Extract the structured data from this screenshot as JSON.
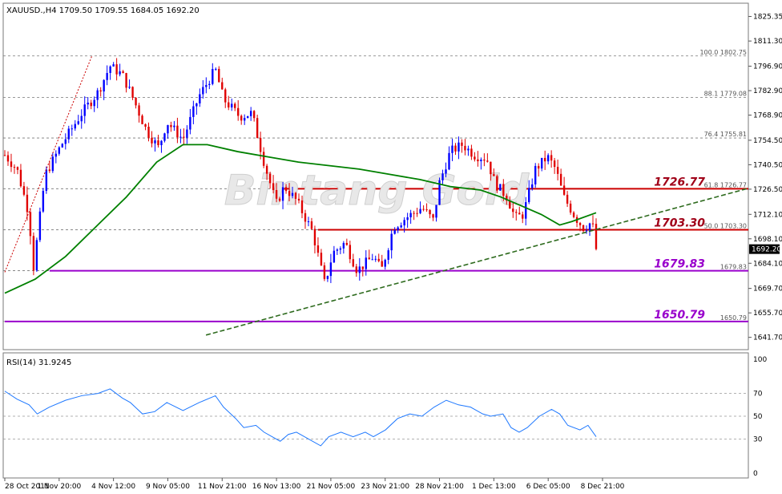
{
  "chart_data": [
    {
      "type": "candlestick",
      "symbol": "XAUUSD.,H4",
      "header": "XAUUSD.,H4  1709.50 1709.55 1684.05 1692.20",
      "quote": {
        "open": 1709.5,
        "high": 1709.55,
        "low": 1684.05,
        "close": 1692.2
      },
      "current_price_label": "1692.20",
      "ylim": [
        1634.66,
        1832.94
      ],
      "y_ticks": [
        "1825.35",
        "1811.30",
        "1796.90",
        "1782.90",
        "1768.90",
        "1754.50",
        "1740.50",
        "1726.50",
        "1712.10",
        "1698.10",
        "1684.10",
        "1669.70",
        "1655.70",
        "1641.70"
      ],
      "x_ticks": [
        "28 Oct 2011",
        "1 Nov 20:00",
        "4 Nov 12:00",
        "9 Nov 05:00",
        "11 Nov 21:00",
        "16 Nov 13:00",
        "21 Nov 05:00",
        "23 Nov 21:00",
        "28 Nov 21:00",
        "1 Dec 13:00",
        "6 Dec 05:00",
        "8 Dec 21:00"
      ],
      "watermark": "Bintang Gold",
      "candle_count": 186,
      "path_points": [
        [
          0,
          1746
        ],
        [
          6,
          1738
        ],
        [
          12,
          1712
        ],
        [
          14,
          1680
        ],
        [
          20,
          1735
        ],
        [
          28,
          1752
        ],
        [
          38,
          1770
        ],
        [
          46,
          1782
        ],
        [
          52,
          1797
        ],
        [
          58,
          1792
        ],
        [
          62,
          1782
        ],
        [
          70,
          1760
        ],
        [
          76,
          1750
        ],
        [
          80,
          1765
        ],
        [
          88,
          1755
        ],
        [
          96,
          1780
        ],
        [
          104,
          1795
        ],
        [
          108,
          1778
        ],
        [
          116,
          1768
        ],
        [
          122,
          1770
        ],
        [
          128,
          1742
        ],
        [
          134,
          1718
        ],
        [
          138,
          1728
        ],
        [
          144,
          1720
        ],
        [
          152,
          1702
        ],
        [
          158,
          1672
        ],
        [
          162,
          1690
        ],
        [
          168,
          1696
        ],
        [
          174,
          1680
        ],
        [
          182,
          1688
        ],
        [
          186,
          1680
        ],
        [
          192,
          1705
        ],
        [
          198,
          1710
        ],
        [
          206,
          1716
        ],
        [
          212,
          1708
        ],
        [
          214,
          1728
        ],
        [
          220,
          1748
        ],
        [
          226,
          1752
        ],
        [
          232,
          1746
        ],
        [
          238,
          1744
        ],
        [
          242,
          1730
        ],
        [
          248,
          1722
        ],
        [
          252,
          1710
        ],
        [
          256,
          1712
        ],
        [
          262,
          1738
        ],
        [
          268,
          1745
        ],
        [
          272,
          1738
        ],
        [
          276,
          1722
        ],
        [
          282,
          1710
        ],
        [
          286,
          1704
        ],
        [
          290,
          1708
        ],
        [
          292,
          1692
        ]
      ],
      "ma_points": [
        [
          0,
          1667
        ],
        [
          15,
          1675
        ],
        [
          30,
          1688
        ],
        [
          45,
          1705
        ],
        [
          60,
          1722
        ],
        [
          75,
          1742
        ],
        [
          88,
          1752
        ],
        [
          100,
          1752
        ],
        [
          115,
          1748
        ],
        [
          130,
          1745
        ],
        [
          145,
          1742
        ],
        [
          160,
          1740
        ],
        [
          175,
          1738
        ],
        [
          190,
          1735
        ],
        [
          205,
          1732
        ],
        [
          220,
          1728
        ],
        [
          235,
          1726
        ],
        [
          245,
          1722
        ],
        [
          255,
          1717
        ],
        [
          265,
          1712
        ],
        [
          274,
          1706
        ],
        [
          280,
          1708
        ],
        [
          292,
          1713
        ]
      ],
      "series": [
        {
          "name": "MA",
          "color": "#008000"
        }
      ],
      "fib_levels": [
        {
          "label": "100.0  1802.75",
          "value": 1802.75
        },
        {
          "label": "88.1  1779.08",
          "value": 1779.08
        },
        {
          "label": "76.4  1755.81",
          "value": 1755.81
        },
        {
          "label": "61.8  1726.77",
          "value": 1726.77
        },
        {
          "label": "50.0  1703.30",
          "value": 1703.3
        },
        {
          "label": "1679.83",
          "value": 1679.83
        },
        {
          "label": "1650.79",
          "value": 1650.79
        }
      ],
      "annotations": [
        {
          "text": "1726.77",
          "value": 1726.77,
          "color": "#a00018"
        },
        {
          "text": "1703.30",
          "value": 1703.3,
          "color": "#a00018"
        },
        {
          "text": "1679.83",
          "value": 1679.83,
          "color": "#9900cc"
        },
        {
          "text": "1650.79",
          "value": 1650.79,
          "color": "#9900cc"
        }
      ],
      "h_lines": [
        {
          "value": 1726.77,
          "color": "#cc0000",
          "from_index": 86
        },
        {
          "value": 1703.3,
          "color": "#cc0000",
          "from_index": 98
        },
        {
          "value": 1679.83,
          "color": "#9900cc",
          "from_index": 14
        },
        {
          "value": 1650.79,
          "color": "#9900cc",
          "from_index": 0
        }
      ],
      "trendline": {
        "from": [
          40,
          1643
        ],
        "to": [
          292,
          1727
        ],
        "color": "#2e6b1e"
      },
      "fib_source_line": {
        "from": [
          0,
          1679
        ],
        "to": [
          43,
          1802.75
        ],
        "color": "#cc0000"
      },
      "colors": {
        "bull": "#0000ff",
        "bear": "#e00000",
        "ma": "#008000",
        "grid": "#c8c8c8"
      }
    },
    {
      "type": "line",
      "title": "RSI(14) 31.9245",
      "ylim": [
        0,
        100
      ],
      "y_ticks": [
        "100",
        "70",
        "50",
        "30",
        "0"
      ],
      "levels": [
        70,
        50,
        30
      ],
      "line_points": [
        [
          0,
          72
        ],
        [
          6,
          65
        ],
        [
          12,
          60
        ],
        [
          16,
          52
        ],
        [
          22,
          58
        ],
        [
          30,
          64
        ],
        [
          38,
          68
        ],
        [
          46,
          70
        ],
        [
          52,
          74
        ],
        [
          58,
          66
        ],
        [
          62,
          62
        ],
        [
          68,
          52
        ],
        [
          74,
          54
        ],
        [
          80,
          62
        ],
        [
          88,
          55
        ],
        [
          96,
          62
        ],
        [
          104,
          68
        ],
        [
          108,
          58
        ],
        [
          114,
          48
        ],
        [
          118,
          40
        ],
        [
          124,
          42
        ],
        [
          128,
          36
        ],
        [
          132,
          32
        ],
        [
          136,
          28
        ],
        [
          140,
          34
        ],
        [
          144,
          36
        ],
        [
          150,
          30
        ],
        [
          156,
          24
        ],
        [
          160,
          32
        ],
        [
          166,
          36
        ],
        [
          172,
          32
        ],
        [
          178,
          36
        ],
        [
          182,
          32
        ],
        [
          188,
          38
        ],
        [
          194,
          48
        ],
        [
          200,
          52
        ],
        [
          206,
          50
        ],
        [
          212,
          58
        ],
        [
          218,
          64
        ],
        [
          224,
          60
        ],
        [
          230,
          58
        ],
        [
          236,
          52
        ],
        [
          240,
          50
        ],
        [
          246,
          52
        ],
        [
          250,
          40
        ],
        [
          254,
          36
        ],
        [
          258,
          40
        ],
        [
          264,
          50
        ],
        [
          270,
          56
        ],
        [
          274,
          52
        ],
        [
          278,
          42
        ],
        [
          284,
          38
        ],
        [
          288,
          42
        ],
        [
          292,
          32
        ]
      ],
      "color": "#1e78ff"
    }
  ]
}
